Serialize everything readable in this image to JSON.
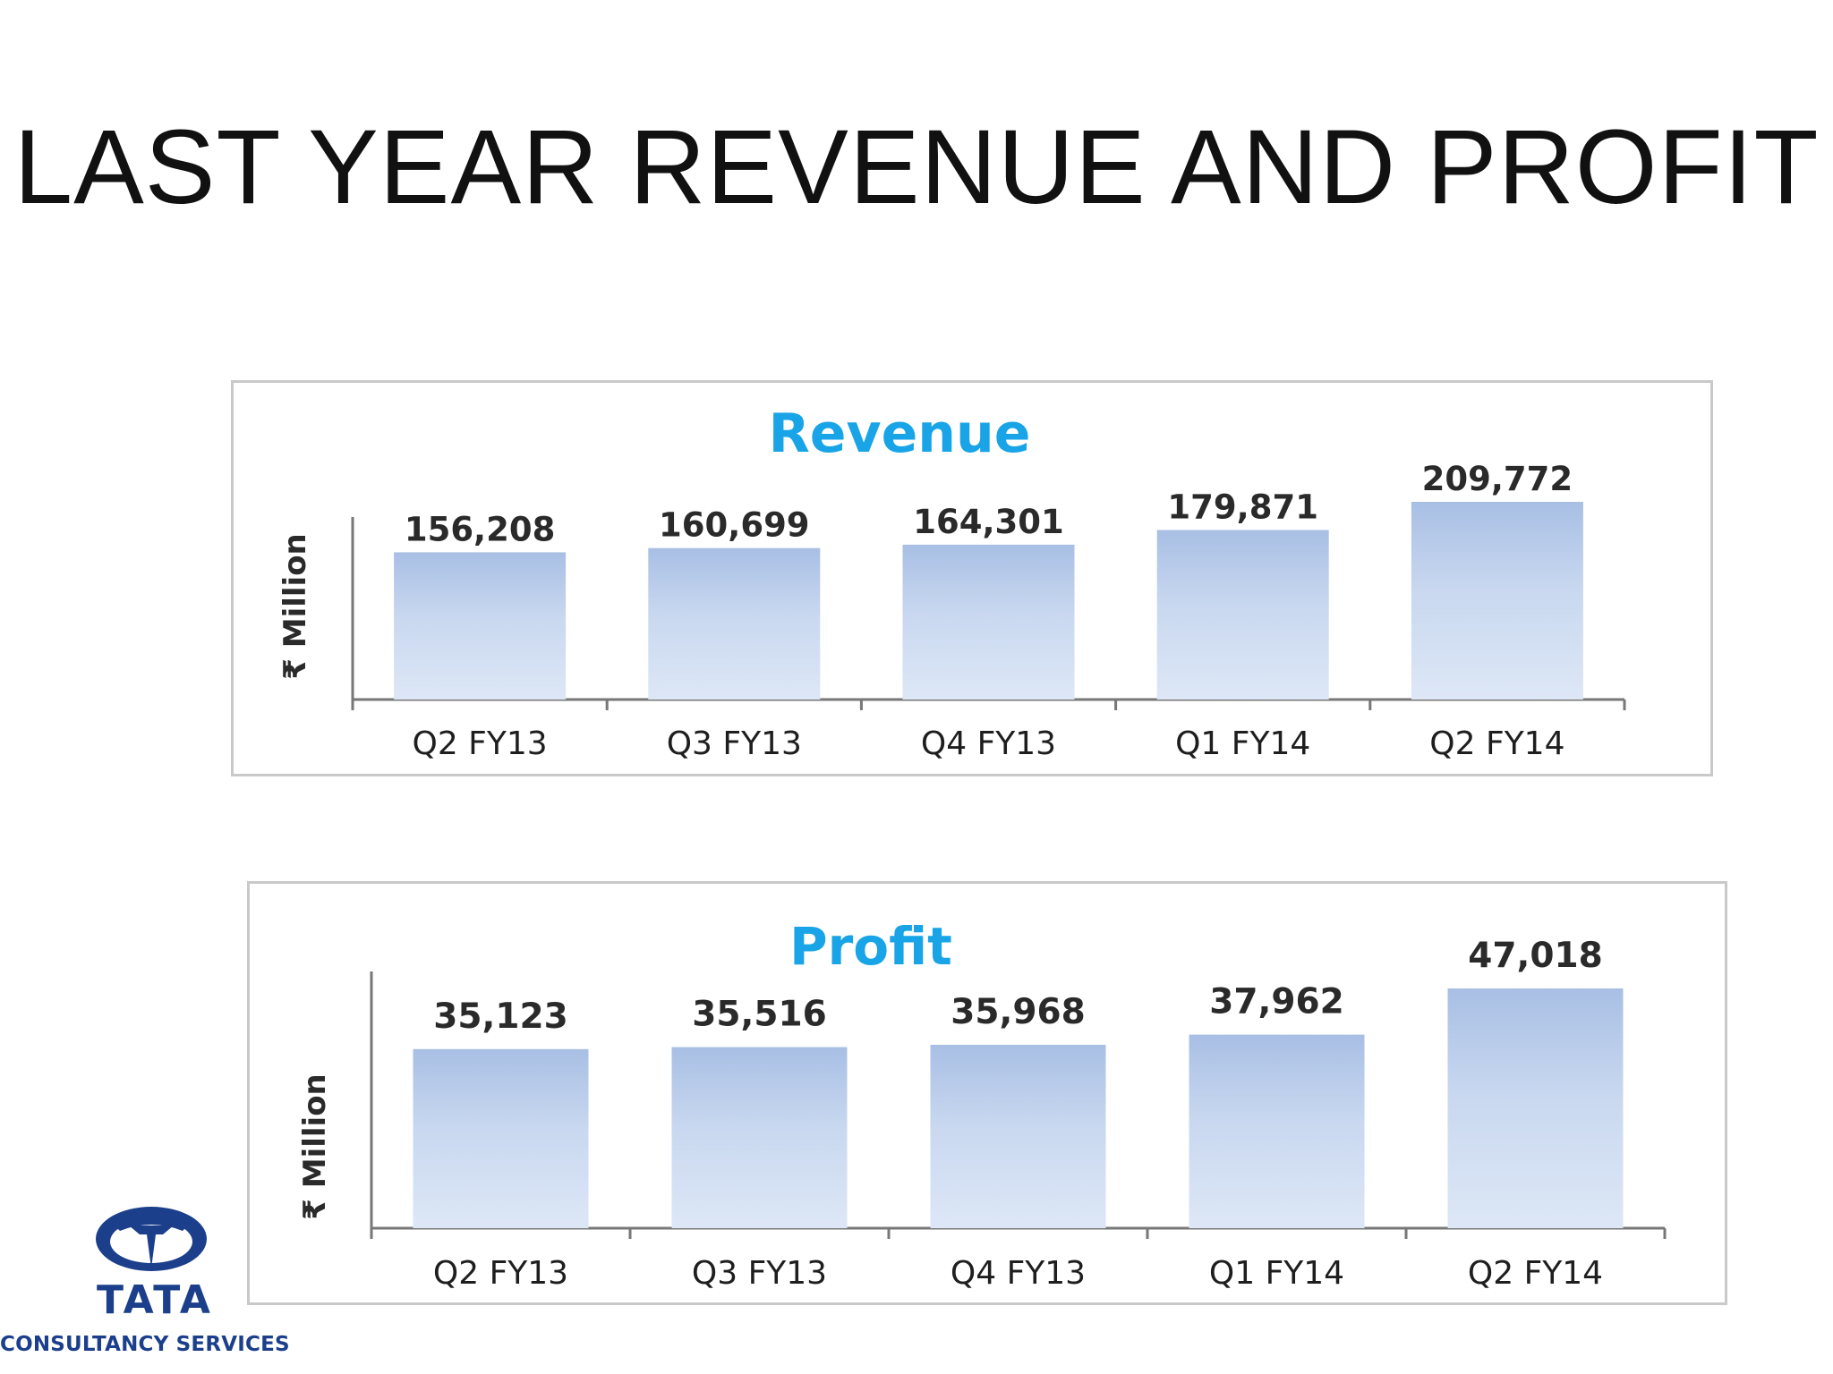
{
  "slide": {
    "title": "LAST YEAR REVENUE AND PROFIT"
  },
  "colors": {
    "chart_title": "#18a4e6",
    "bar_top": "#a8bfe4",
    "bar_mid": "#c9d8f0",
    "bar_bottom": "#dde7f6",
    "axis": "#777777",
    "brand": "#1b3f8b"
  },
  "chart_data": [
    {
      "type": "bar",
      "title": "Revenue",
      "ylabel": "₹ Million",
      "categories": [
        "Q2 FY13",
        "Q3 FY13",
        "Q4 FY13",
        "Q1 FY14",
        "Q2 FY14"
      ],
      "values": [
        156208,
        160699,
        164301,
        179871,
        209772
      ],
      "value_labels": [
        "156,208",
        "160,699",
        "164,301",
        "179,871",
        "209,772"
      ],
      "ylim": [
        0,
        209772
      ],
      "grid": false,
      "legend": false
    },
    {
      "type": "bar",
      "title": "Profit",
      "ylabel": "₹ Million",
      "categories": [
        "Q2 FY13",
        "Q3 FY13",
        "Q4 FY13",
        "Q1 FY14",
        "Q2 FY14"
      ],
      "values": [
        35123,
        35516,
        35968,
        37962,
        47018
      ],
      "value_labels": [
        "35,123",
        "35,516",
        "35,968",
        "37,962",
        "47,018"
      ],
      "ylim": [
        0,
        47018
      ],
      "grid": false,
      "legend": false
    }
  ],
  "logo": {
    "emblem_icon": "tata-emblem-icon",
    "wordmark": "TATA",
    "tagline": "CONSULTANCY SERVICES"
  }
}
